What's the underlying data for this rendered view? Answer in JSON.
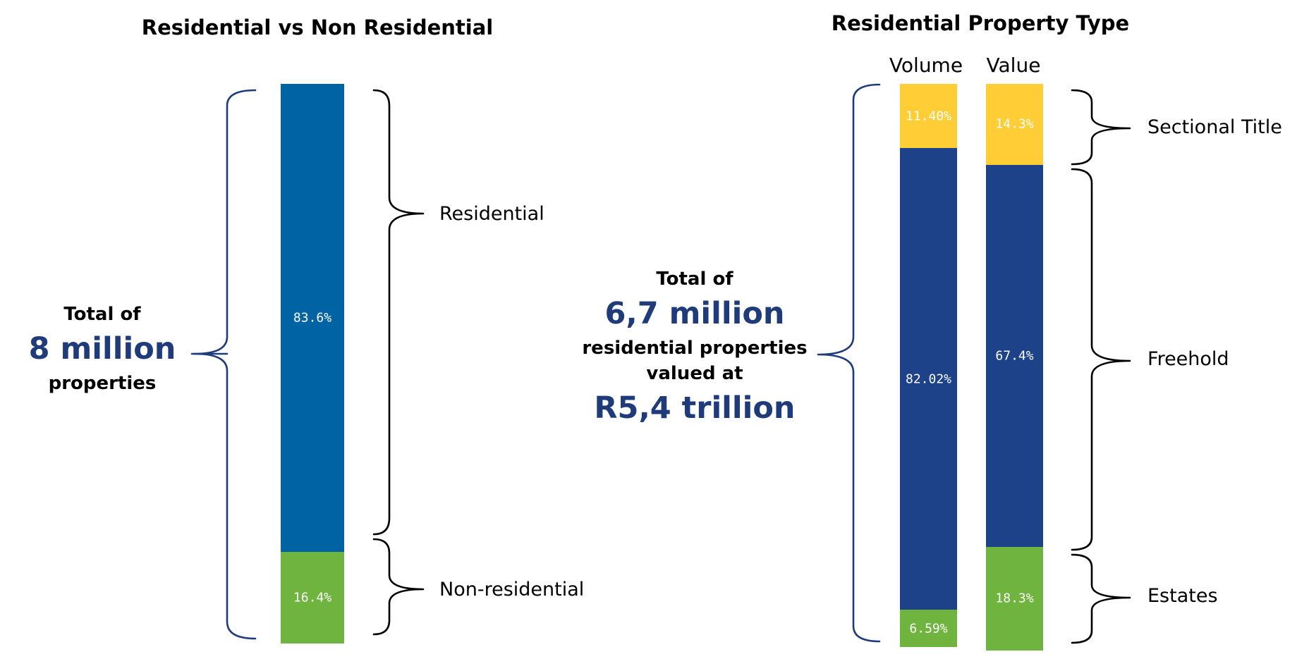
{
  "colors": {
    "residential_blue": "#0064a4",
    "freehold_blue": "#1d4289",
    "sectional_yellow": "#ffcd36",
    "green": "#6fb43f",
    "total_navy": "#1f3b7a",
    "brace_black": "#000000",
    "brace_navy": "#1f3b7a"
  },
  "left": {
    "title": "Residential vs Non Residential",
    "total_prefix": "Total of",
    "total_value": "8 million",
    "total_suffix": "properties",
    "labels": {
      "residential": "Residential",
      "non_residential": "Non-residential"
    }
  },
  "right": {
    "title": "Residential Property Type",
    "col_volume": "Volume",
    "col_value": "Value",
    "total_prefix": "Total of",
    "total_volume": "6,7 million",
    "total_mid1": "residential properties",
    "total_mid2": "valued at",
    "total_value": "R5,4 trillion",
    "labels": {
      "sectional": "Sectional Title",
      "freehold": "Freehold",
      "estates": "Estates"
    }
  },
  "chart_data": [
    {
      "type": "bar",
      "stacked": true,
      "title": "Residential vs Non Residential",
      "categories": [
        ""
      ],
      "series": [
        {
          "name": "Residential",
          "values": [
            83.6
          ],
          "label": "83.6%",
          "color": "#0064a4"
        },
        {
          "name": "Non-residential",
          "values": [
            16.4
          ],
          "label": "16.4%",
          "color": "#6fb43f"
        }
      ]
    },
    {
      "type": "bar",
      "stacked": true,
      "title": "Residential Property Type",
      "categories": [
        "Volume",
        "Value"
      ],
      "series": [
        {
          "name": "Sectional Title",
          "values": [
            11.4,
            14.3
          ],
          "labels": [
            "11.40%",
            "14.3%"
          ],
          "color": "#ffcd36"
        },
        {
          "name": "Freehold",
          "values": [
            82.02,
            67.4
          ],
          "labels": [
            "82.02%",
            "67.4%"
          ],
          "color": "#1d4289"
        },
        {
          "name": "Estates",
          "values": [
            6.59,
            18.3
          ],
          "labels": [
            "6.59%",
            "18.3%"
          ],
          "color": "#6fb43f"
        }
      ]
    }
  ]
}
